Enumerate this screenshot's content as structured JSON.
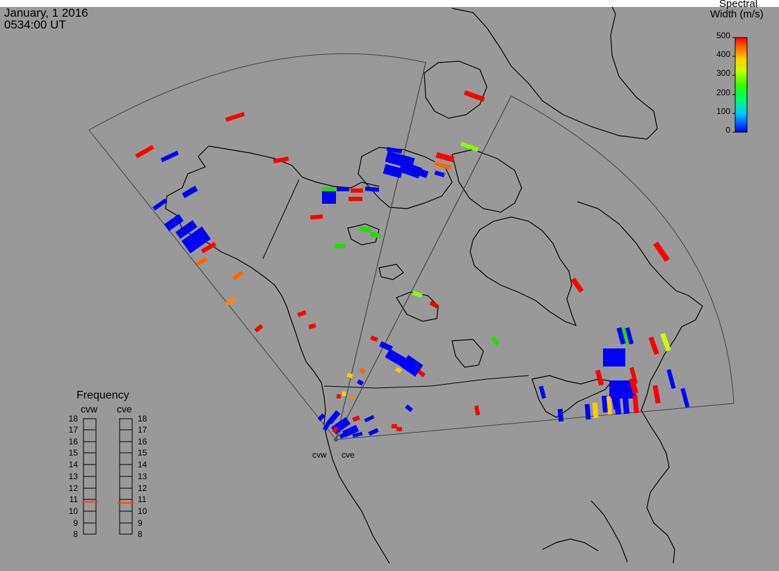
{
  "header": {
    "date": "January, 1 2016",
    "time": "0534:00 UT"
  },
  "colorbar": {
    "title_line1": "Spectral",
    "title_line2": "Width (m/s)",
    "ticks": [
      "500",
      "400",
      "300",
      "200",
      "100",
      "0"
    ]
  },
  "frequency_panel": {
    "title": "Frequency",
    "columns": [
      "cvw",
      "cve"
    ],
    "ticks": [
      "18",
      "17",
      "16",
      "15",
      "14",
      "13",
      "12",
      "11",
      "10",
      "9",
      "8"
    ],
    "cvw_frequency_mhz": 10.8,
    "cve_frequency_mhz": 10.7
  },
  "radars": {
    "west_label": "cvw",
    "east_label": "cve"
  },
  "colors": {
    "background": "#999999",
    "coastline": "#000000",
    "low": "#0000ff",
    "high": "#ff0000",
    "marker": "#ff4400"
  },
  "echo_summary": "Spectral width measurements from radar range-beam cells"
}
